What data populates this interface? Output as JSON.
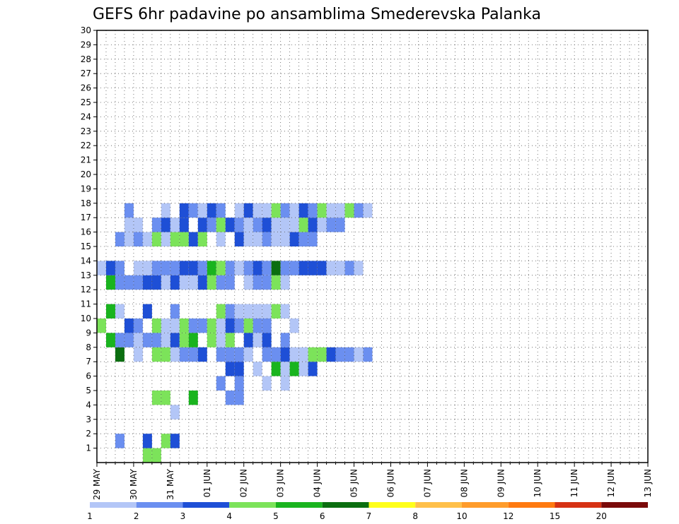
{
  "chart_data": {
    "type": "heatmap",
    "title": "GEFS 6hr padavine po ansamblima Smederevska Palanka",
    "x_labels": [
      "29 MAY",
      "30 MAY",
      "31 MAY",
      "01 JUN",
      "02 JUN",
      "03 JUN",
      "04 JUN",
      "05 JUN",
      "06 JUN",
      "07 JUN",
      "08 JUN",
      "09 JUN",
      "10 JUN",
      "11 JUN",
      "12 JUN",
      "13 JUN"
    ],
    "y_ticks": [
      1,
      2,
      3,
      4,
      5,
      6,
      7,
      8,
      9,
      10,
      11,
      12,
      13,
      14,
      15,
      16,
      17,
      18,
      19,
      20,
      21,
      22,
      23,
      24,
      25,
      26,
      27,
      28,
      29,
      30
    ],
    "ylim": [
      0,
      30
    ],
    "steps_per_day": 4,
    "grid": "dotted",
    "legend": {
      "position": "bottom",
      "levels": [
        "1",
        "2",
        "3",
        "4",
        "5",
        "6",
        "7",
        "8",
        "10",
        "12",
        "15",
        "20"
      ],
      "colors": [
        "#b3c6f7",
        "#6b8ff0",
        "#1e4fd6",
        "#7ce35a",
        "#19b41e",
        "#0b6e10",
        "#ffff1a",
        "#ffc04a",
        "#ff9c2b",
        "#ff7a10",
        "#d63214",
        "#7a0a0a"
      ]
    },
    "cells": [
      [
        5,
        0,
        3
      ],
      [
        6,
        0,
        3
      ],
      [
        2,
        1,
        1
      ],
      [
        5,
        1,
        2
      ],
      [
        7,
        1,
        3
      ],
      [
        8,
        1,
        2
      ],
      [
        8,
        3,
        0
      ],
      [
        6,
        4,
        3
      ],
      [
        7,
        4,
        3
      ],
      [
        10,
        4,
        4
      ],
      [
        14,
        4,
        1
      ],
      [
        15,
        4,
        1
      ],
      [
        13,
        5,
        1
      ],
      [
        15,
        5,
        1
      ],
      [
        18,
        5,
        0
      ],
      [
        20,
        5,
        0
      ],
      [
        14,
        6,
        2
      ],
      [
        15,
        6,
        2
      ],
      [
        17,
        6,
        0
      ],
      [
        19,
        6,
        4
      ],
      [
        20,
        6,
        0
      ],
      [
        21,
        6,
        4
      ],
      [
        22,
        6,
        0
      ],
      [
        23,
        6,
        2
      ],
      [
        2,
        7,
        5
      ],
      [
        4,
        7,
        0
      ],
      [
        6,
        7,
        3
      ],
      [
        7,
        7,
        3
      ],
      [
        8,
        7,
        0
      ],
      [
        9,
        7,
        1
      ],
      [
        10,
        7,
        1
      ],
      [
        11,
        7,
        2
      ],
      [
        13,
        7,
        1
      ],
      [
        14,
        7,
        1
      ],
      [
        15,
        7,
        1
      ],
      [
        16,
        7,
        0
      ],
      [
        18,
        7,
        1
      ],
      [
        19,
        7,
        1
      ],
      [
        20,
        7,
        2
      ],
      [
        21,
        7,
        0
      ],
      [
        22,
        7,
        0
      ],
      [
        23,
        7,
        3
      ],
      [
        24,
        7,
        3
      ],
      [
        25,
        7,
        2
      ],
      [
        26,
        7,
        1
      ],
      [
        27,
        7,
        1
      ],
      [
        28,
        7,
        0
      ],
      [
        29,
        7,
        1
      ],
      [
        1,
        8,
        4
      ],
      [
        2,
        8,
        1
      ],
      [
        3,
        8,
        1
      ],
      [
        4,
        8,
        0
      ],
      [
        5,
        8,
        1
      ],
      [
        6,
        8,
        1
      ],
      [
        7,
        8,
        0
      ],
      [
        8,
        8,
        2
      ],
      [
        9,
        8,
        3
      ],
      [
        10,
        8,
        4
      ],
      [
        12,
        8,
        3
      ],
      [
        13,
        8,
        0
      ],
      [
        14,
        8,
        3
      ],
      [
        16,
        8,
        2
      ],
      [
        17,
        8,
        0
      ],
      [
        18,
        8,
        2
      ],
      [
        20,
        8,
        1
      ],
      [
        0,
        9,
        3
      ],
      [
        3,
        9,
        2
      ],
      [
        4,
        9,
        1
      ],
      [
        6,
        9,
        3
      ],
      [
        7,
        9,
        0
      ],
      [
        8,
        9,
        0
      ],
      [
        9,
        9,
        3
      ],
      [
        10,
        9,
        1
      ],
      [
        11,
        9,
        1
      ],
      [
        12,
        9,
        3
      ],
      [
        13,
        9,
        0
      ],
      [
        14,
        9,
        2
      ],
      [
        15,
        9,
        1
      ],
      [
        16,
        9,
        3
      ],
      [
        17,
        9,
        1
      ],
      [
        18,
        9,
        1
      ],
      [
        21,
        9,
        0
      ],
      [
        1,
        10,
        4
      ],
      [
        2,
        10,
        0
      ],
      [
        5,
        10,
        2
      ],
      [
        8,
        10,
        1
      ],
      [
        13,
        10,
        3
      ],
      [
        14,
        10,
        1
      ],
      [
        15,
        10,
        0
      ],
      [
        16,
        10,
        0
      ],
      [
        17,
        10,
        0
      ],
      [
        18,
        10,
        0
      ],
      [
        19,
        10,
        3
      ],
      [
        20,
        10,
        0
      ],
      [
        1,
        12,
        4
      ],
      [
        2,
        12,
        1
      ],
      [
        3,
        12,
        1
      ],
      [
        4,
        12,
        1
      ],
      [
        5,
        12,
        2
      ],
      [
        6,
        12,
        2
      ],
      [
        7,
        12,
        0
      ],
      [
        8,
        12,
        2
      ],
      [
        9,
        12,
        0
      ],
      [
        10,
        12,
        0
      ],
      [
        11,
        12,
        2
      ],
      [
        12,
        12,
        3
      ],
      [
        13,
        12,
        1
      ],
      [
        14,
        12,
        1
      ],
      [
        16,
        12,
        0
      ],
      [
        17,
        12,
        1
      ],
      [
        18,
        12,
        1
      ],
      [
        19,
        12,
        3
      ],
      [
        20,
        12,
        0
      ],
      [
        0,
        13,
        0
      ],
      [
        1,
        13,
        2
      ],
      [
        2,
        13,
        1
      ],
      [
        4,
        13,
        0
      ],
      [
        5,
        13,
        0
      ],
      [
        6,
        13,
        1
      ],
      [
        7,
        13,
        1
      ],
      [
        8,
        13,
        1
      ],
      [
        9,
        13,
        2
      ],
      [
        10,
        13,
        2
      ],
      [
        11,
        13,
        1
      ],
      [
        12,
        13,
        4
      ],
      [
        13,
        13,
        3
      ],
      [
        14,
        13,
        1
      ],
      [
        15,
        13,
        0
      ],
      [
        16,
        13,
        1
      ],
      [
        17,
        13,
        2
      ],
      [
        18,
        13,
        1
      ],
      [
        19,
        13,
        5
      ],
      [
        20,
        13,
        1
      ],
      [
        21,
        13,
        1
      ],
      [
        22,
        13,
        2
      ],
      [
        23,
        13,
        2
      ],
      [
        24,
        13,
        2
      ],
      [
        25,
        13,
        0
      ],
      [
        26,
        13,
        0
      ],
      [
        27,
        13,
        1
      ],
      [
        28,
        13,
        0
      ],
      [
        2,
        15,
        1
      ],
      [
        3,
        15,
        0
      ],
      [
        4,
        15,
        1
      ],
      [
        5,
        15,
        0
      ],
      [
        6,
        15,
        3
      ],
      [
        7,
        15,
        0
      ],
      [
        8,
        15,
        3
      ],
      [
        9,
        15,
        3
      ],
      [
        10,
        15,
        2
      ],
      [
        11,
        15,
        3
      ],
      [
        13,
        15,
        0
      ],
      [
        15,
        15,
        2
      ],
      [
        16,
        15,
        0
      ],
      [
        17,
        15,
        0
      ],
      [
        18,
        15,
        1
      ],
      [
        19,
        15,
        0
      ],
      [
        20,
        15,
        0
      ],
      [
        21,
        15,
        2
      ],
      [
        22,
        15,
        1
      ],
      [
        23,
        15,
        1
      ],
      [
        3,
        16,
        0
      ],
      [
        4,
        16,
        0
      ],
      [
        6,
        16,
        1
      ],
      [
        7,
        16,
        2
      ],
      [
        8,
        16,
        0
      ],
      [
        9,
        16,
        2
      ],
      [
        11,
        16,
        2
      ],
      [
        12,
        16,
        1
      ],
      [
        13,
        16,
        3
      ],
      [
        14,
        16,
        2
      ],
      [
        15,
        16,
        1
      ],
      [
        16,
        16,
        0
      ],
      [
        17,
        16,
        1
      ],
      [
        18,
        16,
        2
      ],
      [
        19,
        16,
        0
      ],
      [
        20,
        16,
        0
      ],
      [
        21,
        16,
        0
      ],
      [
        22,
        16,
        3
      ],
      [
        23,
        16,
        2
      ],
      [
        24,
        16,
        0
      ],
      [
        25,
        16,
        1
      ],
      [
        26,
        16,
        1
      ],
      [
        3,
        17,
        1
      ],
      [
        7,
        17,
        0
      ],
      [
        9,
        17,
        2
      ],
      [
        10,
        17,
        1
      ],
      [
        11,
        17,
        0
      ],
      [
        12,
        17,
        2
      ],
      [
        13,
        17,
        1
      ],
      [
        15,
        17,
        0
      ],
      [
        16,
        17,
        2
      ],
      [
        17,
        17,
        0
      ],
      [
        18,
        17,
        0
      ],
      [
        19,
        17,
        3
      ],
      [
        20,
        17,
        1
      ],
      [
        21,
        17,
        0
      ],
      [
        22,
        17,
        2
      ],
      [
        23,
        17,
        1
      ],
      [
        24,
        17,
        3
      ],
      [
        25,
        17,
        0
      ],
      [
        26,
        17,
        0
      ],
      [
        27,
        17,
        3
      ],
      [
        28,
        17,
        1
      ],
      [
        29,
        17,
        0
      ]
    ]
  }
}
